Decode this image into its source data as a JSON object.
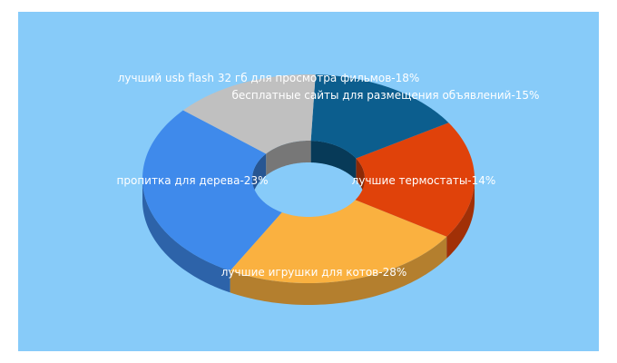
{
  "chart_data": {
    "type": "pie",
    "variant": "donut-3d",
    "background": "#87cbf9",
    "slices": [
      {
        "label": "лучшие игрушки для котов-28%",
        "value": 28,
        "color": "#3f8aeb"
      },
      {
        "label": "пропитка для дерева-23%",
        "value": 23,
        "color": "#fab140"
      },
      {
        "label": "лучший usb flash 32 гб для просмотра фильмов-18%",
        "value": 18,
        "color": "#e0420a"
      },
      {
        "label": "бесплатные сайты для размещения объявлений-15%",
        "value": 15,
        "color": "#0c5e8e"
      },
      {
        "label": "лучшие термостаты-14%",
        "value": 14,
        "color": "#c0c0c0"
      }
    ]
  }
}
